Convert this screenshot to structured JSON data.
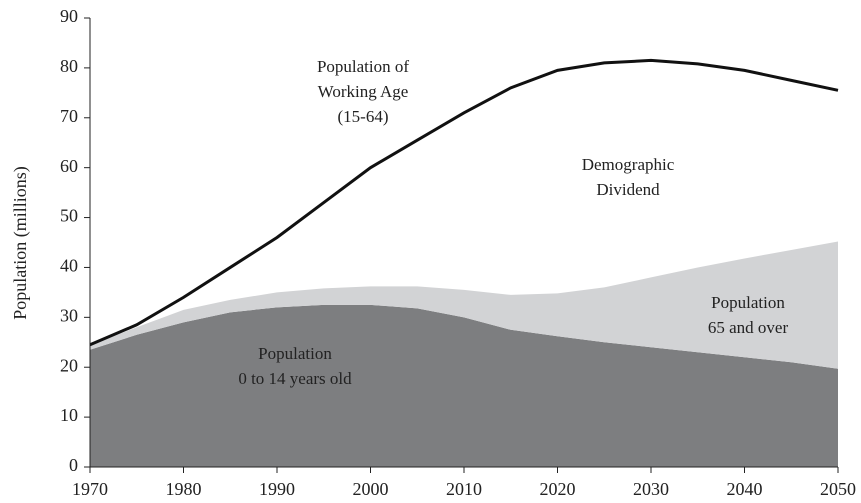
{
  "chart_data": {
    "type": "stacked-area-line",
    "y_label": "Population (millions)",
    "x": [
      1970,
      1975,
      1980,
      1985,
      1990,
      1995,
      2000,
      2005,
      2010,
      2015,
      2020,
      2025,
      2030,
      2035,
      2040,
      2045,
      2050
    ],
    "series": [
      {
        "color": "#7d7e80",
        "kind": "area",
        "values": [
          23.5,
          26.5,
          29,
          31,
          32,
          32.5,
          32.5,
          31.8,
          30,
          27.5,
          26.2,
          25,
          24,
          23,
          22,
          21,
          19.7
        ]
      },
      {
        "color": "#d2d3d5",
        "kind": "area",
        "values": [
          1,
          1.5,
          2.5,
          2.5,
          3,
          3.3,
          3.7,
          4.4,
          5.5,
          7,
          8.6,
          11,
          14,
          17,
          19.8,
          22.5,
          25.5
        ]
      },
      {
        "color": "#111111",
        "kind": "line",
        "values": [
          24.5,
          28.5,
          34,
          40,
          46,
          53,
          60,
          65.5,
          71,
          76,
          79.5,
          81,
          81.5,
          80.8,
          79.5,
          77.5,
          75.5
        ]
      }
    ],
    "annotations": [
      {
        "lines": [
          "Population of",
          "Working Age",
          "(15-64)"
        ]
      },
      {
        "lines": [
          "Demographic",
          "Dividend"
        ]
      },
      {
        "lines": [
          "Population",
          "65 and over"
        ]
      },
      {
        "lines": [
          "Population",
          "0 to 14 years old"
        ]
      }
    ],
    "xlim": [
      1970,
      2050
    ],
    "xticks": [
      1970,
      1980,
      1990,
      2000,
      2010,
      2020,
      2030,
      2040,
      2050
    ],
    "ylim": [
      0,
      90
    ],
    "yticks": [
      0,
      10,
      20,
      30,
      40,
      50,
      60,
      70,
      80,
      90
    ]
  }
}
